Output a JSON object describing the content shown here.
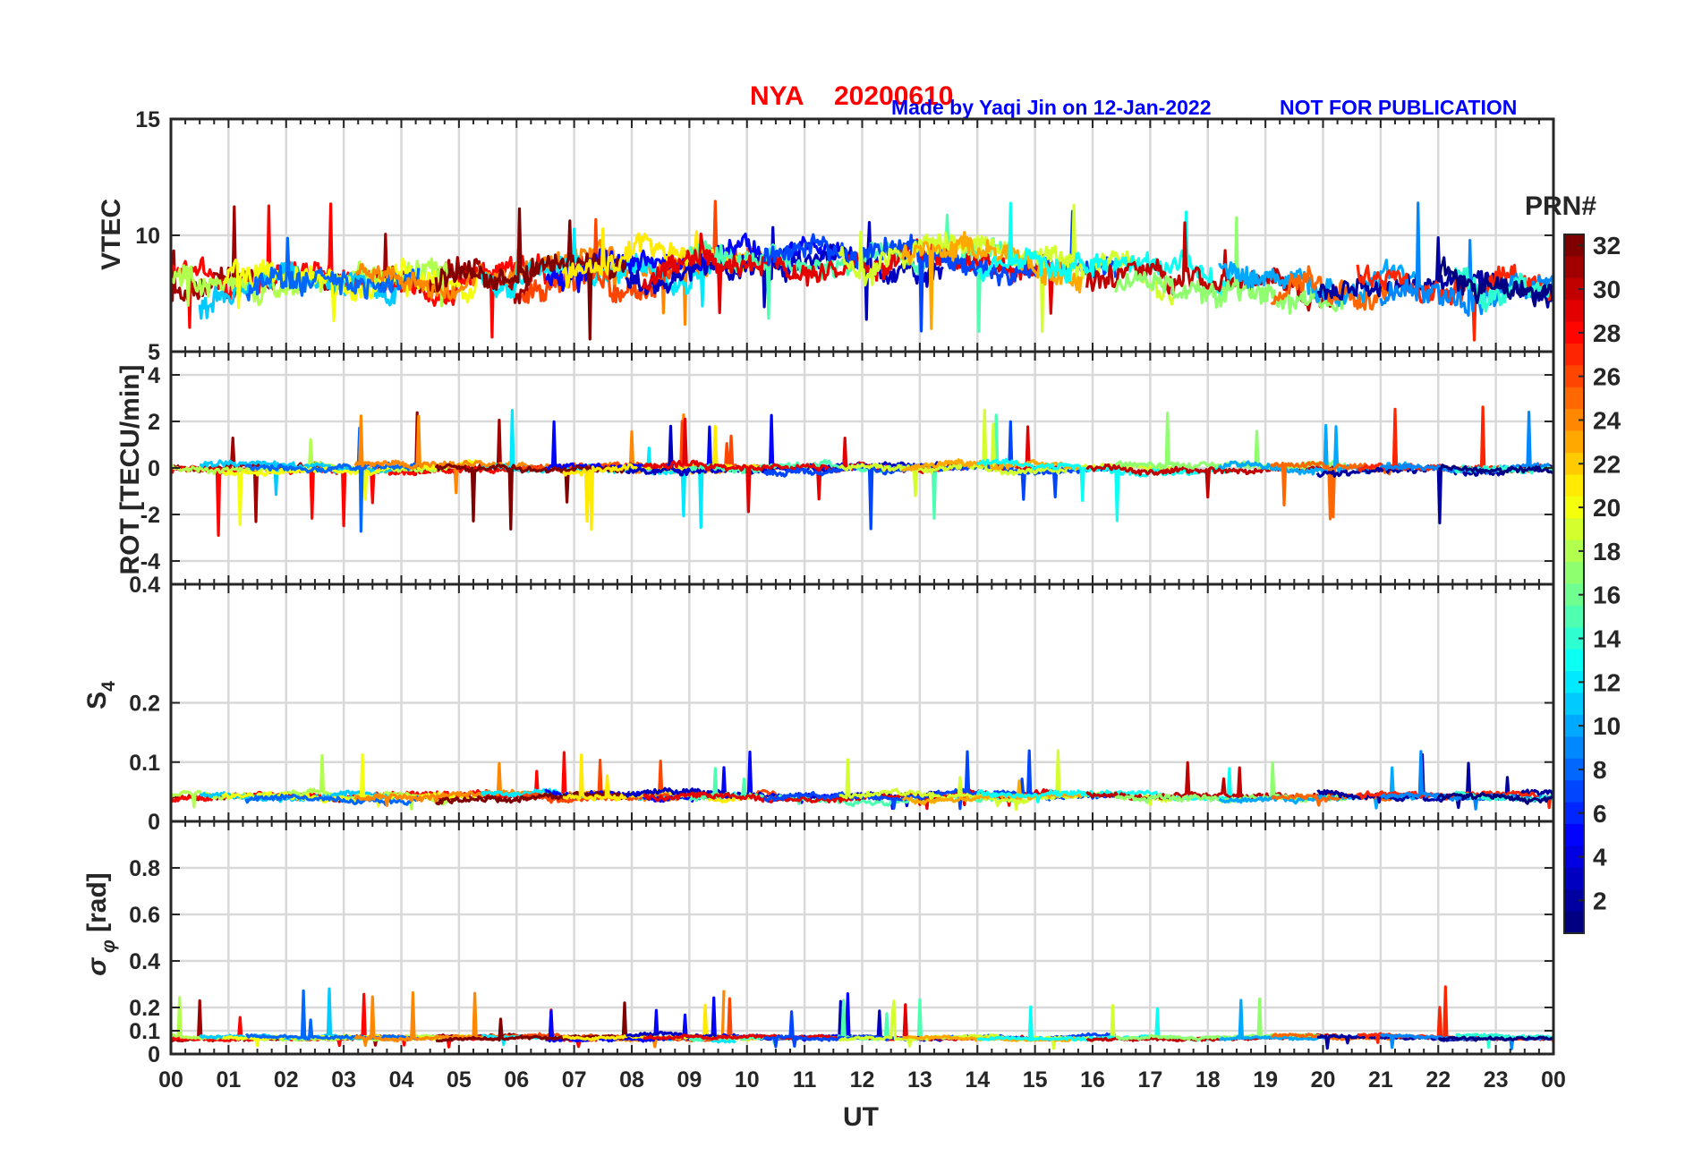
{
  "header": {
    "station": "NYA",
    "date": "20200610",
    "credit": "Made by Yaqi Jin on 12-Jan-2022",
    "notice": "NOT FOR PUBLICATION"
  },
  "chart_data": {
    "type": "line",
    "xlabel": "UT",
    "x_range_hours": [
      0,
      24
    ],
    "x_ticks": [
      "00",
      "01",
      "02",
      "03",
      "04",
      "05",
      "06",
      "07",
      "08",
      "09",
      "10",
      "11",
      "12",
      "13",
      "14",
      "15",
      "16",
      "17",
      "18",
      "19",
      "20",
      "21",
      "22",
      "23",
      "00"
    ],
    "colorbar": {
      "title": "PRN#",
      "range": [
        1,
        32
      ],
      "ticks": [
        2,
        4,
        6,
        8,
        10,
        12,
        14,
        16,
        18,
        20,
        22,
        24,
        26,
        28,
        30,
        32
      ],
      "colormap": "jet"
    },
    "panels": [
      {
        "id": "vtec",
        "ylabel": "VTEC",
        "ylim": [
          5,
          15
        ],
        "y_ticks": [
          5,
          10,
          15
        ],
        "profile": [
          [
            0,
            7.6
          ],
          [
            2,
            8.2
          ],
          [
            4,
            8.0
          ],
          [
            6,
            8.4
          ],
          [
            8,
            8.6
          ],
          [
            10,
            9.0
          ],
          [
            12,
            8.9
          ],
          [
            14,
            9.1
          ],
          [
            16,
            8.6
          ],
          [
            18,
            7.9
          ],
          [
            20,
            7.5
          ],
          [
            22,
            7.6
          ],
          [
            24,
            7.7
          ]
        ],
        "spread": 1.0,
        "peak_max": 11.6,
        "peak_min": 5.4
      },
      {
        "id": "rot",
        "ylabel": "ROT [TECU/min]",
        "ylim": [
          -5,
          5
        ],
        "y_ticks": [
          -4,
          -2,
          0,
          2,
          4
        ],
        "profile": [
          [
            0,
            0
          ],
          [
            24,
            0
          ]
        ],
        "spread": 0.25,
        "peak_max": 2.7,
        "peak_min": -2.9
      },
      {
        "id": "s4",
        "ylabel": "S4",
        "ylim": [
          0,
          0.4
        ],
        "y_ticks": [
          0,
          0.1,
          0.2,
          0.4
        ],
        "profile": [
          [
            0,
            0.042
          ],
          [
            24,
            0.042
          ]
        ],
        "spread": 0.009,
        "peak_max": 0.12,
        "peak_min": 0.02
      },
      {
        "id": "sigma_phi",
        "ylabel": "σ φ [rad]",
        "ylim": [
          0,
          1
        ],
        "y_ticks": [
          0,
          0.1,
          0.2,
          0.4,
          0.6,
          0.8
        ],
        "profile": [
          [
            0,
            0.07
          ],
          [
            24,
            0.07
          ]
        ],
        "spread": 0.012,
        "peak_max": 0.29,
        "peak_min": 0.02
      }
    ],
    "prn_series": [
      {
        "prn": 31,
        "start": 0.0,
        "end": 6.2
      },
      {
        "prn": 28,
        "start": 0.0,
        "end": 7.4
      },
      {
        "prn": 18,
        "start": 0.0,
        "end": 4.8
      },
      {
        "prn": 11,
        "start": 0.5,
        "end": 3.9
      },
      {
        "prn": 20,
        "start": 0.9,
        "end": 5.3
      },
      {
        "prn": 8,
        "start": 1.3,
        "end": 4.3
      },
      {
        "prn": 24,
        "start": 3.2,
        "end": 9.6
      },
      {
        "prn": 12,
        "start": 5.4,
        "end": 9.8
      },
      {
        "prn": 26,
        "start": 6.1,
        "end": 10.5
      },
      {
        "prn": 5,
        "start": 6.5,
        "end": 12.0
      },
      {
        "prn": 32,
        "start": 4.6,
        "end": 7.9
      },
      {
        "prn": 21,
        "start": 6.8,
        "end": 10.2
      },
      {
        "prn": 3,
        "start": 7.9,
        "end": 13.4
      },
      {
        "prn": 15,
        "start": 9.0,
        "end": 14.6
      },
      {
        "prn": 29,
        "start": 8.2,
        "end": 15.5
      },
      {
        "prn": 7,
        "start": 10.3,
        "end": 16.4
      },
      {
        "prn": 19,
        "start": 11.6,
        "end": 17.4
      },
      {
        "prn": 23,
        "start": 12.7,
        "end": 15.8
      },
      {
        "prn": 13,
        "start": 14.0,
        "end": 18.4
      },
      {
        "prn": 30,
        "start": 15.9,
        "end": 20.3
      },
      {
        "prn": 17,
        "start": 16.4,
        "end": 20.4
      },
      {
        "prn": 10,
        "start": 18.2,
        "end": 21.6
      },
      {
        "prn": 25,
        "start": 19.1,
        "end": 21.2
      },
      {
        "prn": 2,
        "start": 19.9,
        "end": 24.0
      },
      {
        "prn": 27,
        "start": 20.6,
        "end": 24.0
      },
      {
        "prn": 9,
        "start": 21.0,
        "end": 24.0
      },
      {
        "prn": 14,
        "start": 22.3,
        "end": 24.0
      },
      {
        "prn": 1,
        "start": 22.0,
        "end": 24.0
      }
    ]
  }
}
